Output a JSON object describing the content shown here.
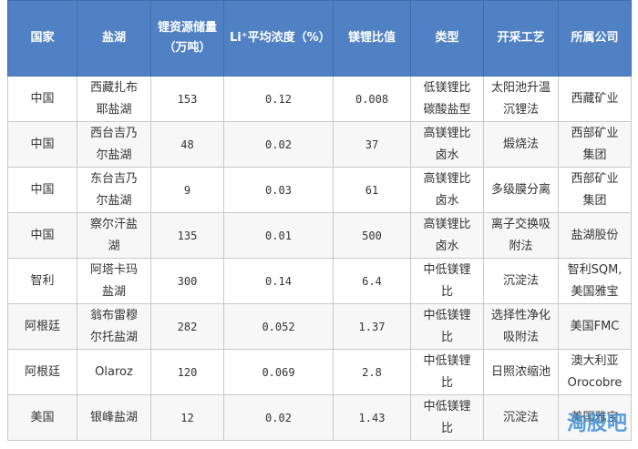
{
  "table": {
    "headers": [
      "国家",
      "盐湖",
      "锂资源储量（万吨）",
      "Li⁺平均浓度（%）",
      "镁锂比值",
      "类型",
      "开采工艺",
      "所属公司"
    ],
    "rows": [
      [
        "中国",
        "西藏扎布耶盐湖",
        "153",
        "0.12",
        "0.008",
        "低镁锂比碳酸盐型",
        "太阳池升温沉锂法",
        "西藏矿业"
      ],
      [
        "中国",
        "西台吉乃尔盐湖",
        "48",
        "0.02",
        "37",
        "高镁锂比卤水",
        "煅烧法",
        "西部矿业集团"
      ],
      [
        "中国",
        "东台吉乃尔盐湖",
        "9",
        "0.03",
        "61",
        "高镁锂比卤水",
        "多级膜分离",
        "西部矿业集团"
      ],
      [
        "中国",
        "察尔汗盐湖",
        "135",
        "0.01",
        "500",
        "高镁锂比卤水",
        "离子交换吸附法",
        "盐湖股份"
      ],
      [
        "智利",
        "阿塔卡玛盐湖",
        "300",
        "0.14",
        "6.4",
        "中低镁锂比",
        "沉淀法",
        "智利SQM,美国雅宝"
      ],
      [
        "阿根廷",
        "翁布雷穆尔托盐湖",
        "282",
        "0.052",
        "1.37",
        "中低镁锂比",
        "选择性净化吸附法",
        "美国FMC"
      ],
      [
        "阿根廷",
        "Olaroz",
        "120",
        "0.069",
        "2.8",
        "中低镁锂比",
        "日照浓缩池",
        "澳大利亚Orocobre"
      ],
      [
        "美国",
        "银峰盐湖",
        "12",
        "0.02",
        "1.43",
        "中低镁锂比",
        "沉淀法",
        "美国雅宝"
      ]
    ]
  },
  "watermark": "淘股吧"
}
